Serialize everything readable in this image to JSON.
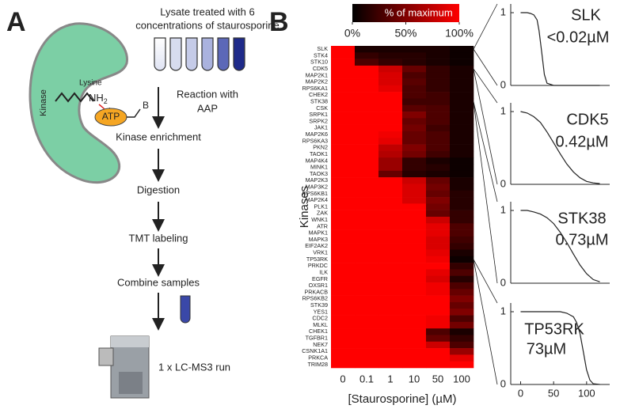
{
  "panel_a": {
    "label": "A",
    "title_lines": [
      "Lysate treated with 6",
      "concentrations of staurosporine"
    ],
    "kinase": "Kinase",
    "lysine": "Lysine",
    "nh": "NH",
    "nh_sub": "2",
    "atp": "ATP",
    "b": "B",
    "reaction_lines": [
      "Reaction with",
      "AAP"
    ],
    "steps": [
      "Kinase enrichment",
      "Digestion",
      "TMT labeling",
      "Combine samples",
      "1 x LC-MS3 run"
    ]
  },
  "panel_b_label": "B",
  "chart_data": [
    {
      "type": "heatmap",
      "colorbar": {
        "title": "% of maximum",
        "lim": [
          0,
          100
        ],
        "ticks": [
          {
            "value": 0,
            "label": "0%"
          },
          {
            "value": 50,
            "label": "50%"
          },
          {
            "value": 100,
            "label": "100%"
          }
        ],
        "colors": [
          "#000000",
          "#ff0000"
        ]
      },
      "x_label": "[Staurosporine] (µM)",
      "y_label": "Kinases",
      "categories": [
        "0",
        "0.1",
        "1",
        "10",
        "50",
        "100"
      ],
      "rows": [
        "SLK",
        "STK4",
        "STK10",
        "CDK5",
        "MAP2K1",
        "MAP2K2",
        "RPS6KA1",
        "CHEK2",
        "STK38",
        "CSK",
        "SRPK1",
        "SRPK2",
        "JAK1",
        "MAP2K6",
        "RPS6KA3",
        "PKN2",
        "TAOK1",
        "MAP4K4",
        "MINK1",
        "TAOK3",
        "MAP2K3",
        "MAP3K2",
        "RPS6KB1",
        "MAP2K4",
        "PLK1",
        "ZAK",
        "WNK1",
        "ATR",
        "MAPK1",
        "MAPK3",
        "EIF2AK2",
        "VRK1",
        "TP53RK",
        "PRKDC",
        "ILK",
        "EGFR",
        "OXSR1",
        "PRKACB",
        "RPS6KB2",
        "STK39",
        "YES1",
        "CDC2",
        "MLKL",
        "CHEK1",
        "TGFBR1",
        "NEK7",
        "CSNK1A1",
        "PRKCA",
        "TRIM28"
      ],
      "values": [
        [
          100,
          10,
          10,
          10,
          10,
          5
        ],
        [
          100,
          20,
          15,
          15,
          10,
          5
        ],
        [
          100,
          30,
          20,
          15,
          10,
          5
        ],
        [
          100,
          100,
          80,
          40,
          20,
          10
        ],
        [
          100,
          100,
          85,
          30,
          20,
          10
        ],
        [
          100,
          100,
          85,
          35,
          20,
          10
        ],
        [
          100,
          100,
          90,
          30,
          20,
          10
        ],
        [
          100,
          100,
          100,
          30,
          25,
          10
        ],
        [
          100,
          100,
          100,
          25,
          25,
          10
        ],
        [
          100,
          100,
          100,
          35,
          30,
          10
        ],
        [
          100,
          100,
          100,
          50,
          30,
          10
        ],
        [
          100,
          100,
          100,
          40,
          30,
          10
        ],
        [
          100,
          100,
          100,
          45,
          25,
          10
        ],
        [
          100,
          100,
          95,
          40,
          30,
          10
        ],
        [
          100,
          100,
          90,
          40,
          30,
          10
        ],
        [
          100,
          100,
          75,
          50,
          30,
          10
        ],
        [
          100,
          100,
          70,
          45,
          25,
          10
        ],
        [
          100,
          100,
          60,
          20,
          10,
          5
        ],
        [
          100,
          100,
          60,
          20,
          15,
          5
        ],
        [
          100,
          100,
          40,
          15,
          10,
          5
        ],
        [
          100,
          100,
          100,
          80,
          40,
          10
        ],
        [
          100,
          100,
          100,
          85,
          45,
          10
        ],
        [
          100,
          100,
          100,
          85,
          40,
          15
        ],
        [
          100,
          100,
          100,
          85,
          50,
          15
        ],
        [
          100,
          100,
          100,
          100,
          45,
          15
        ],
        [
          100,
          100,
          100,
          100,
          40,
          20
        ],
        [
          100,
          100,
          100,
          100,
          80,
          20
        ],
        [
          100,
          100,
          100,
          100,
          90,
          30
        ],
        [
          100,
          100,
          100,
          100,
          90,
          30
        ],
        [
          100,
          100,
          100,
          100,
          85,
          25
        ],
        [
          100,
          100,
          100,
          100,
          85,
          20
        ],
        [
          100,
          100,
          100,
          100,
          90,
          10
        ],
        [
          100,
          100,
          100,
          100,
          95,
          5
        ],
        [
          100,
          100,
          100,
          100,
          100,
          20
        ],
        [
          100,
          100,
          100,
          100,
          90,
          30
        ],
        [
          100,
          100,
          100,
          100,
          85,
          15
        ],
        [
          100,
          100,
          100,
          100,
          95,
          30
        ],
        [
          100,
          100,
          100,
          100,
          95,
          40
        ],
        [
          100,
          100,
          100,
          100,
          100,
          50
        ],
        [
          100,
          100,
          100,
          100,
          100,
          40
        ],
        [
          100,
          100,
          100,
          100,
          100,
          50
        ],
        [
          100,
          100,
          100,
          100,
          95,
          30
        ],
        [
          100,
          100,
          100,
          100,
          95,
          45
        ],
        [
          100,
          100,
          100,
          100,
          30,
          10
        ],
        [
          100,
          100,
          100,
          100,
          40,
          20
        ],
        [
          100,
          100,
          100,
          100,
          80,
          30
        ],
        [
          100,
          100,
          100,
          100,
          100,
          60
        ],
        [
          100,
          100,
          100,
          100,
          100,
          90
        ],
        [
          100,
          100,
          100,
          100,
          100,
          100
        ]
      ]
    },
    {
      "type": "line",
      "title": "SLK",
      "annotation": "<0.02µM",
      "color": "#222222",
      "xlim": [
        -15,
        135
      ],
      "ylim": [
        0,
        1.12
      ],
      "yticks": [
        0,
        1
      ],
      "x": [
        0,
        5,
        10,
        15,
        20,
        25,
        28,
        32,
        36,
        40,
        50,
        70,
        100,
        120
      ],
      "values": [
        1,
        1,
        1,
        0.99,
        0.97,
        0.9,
        0.75,
        0.45,
        0.15,
        0.03,
        0,
        0,
        0,
        0
      ]
    },
    {
      "type": "line",
      "title": "CDK5",
      "annotation": "0.42µM",
      "color": "#222222",
      "xlim": [
        -15,
        135
      ],
      "ylim": [
        0,
        1.12
      ],
      "yticks": [
        0,
        1
      ],
      "x": [
        0,
        10,
        20,
        30,
        40,
        50,
        60,
        70,
        80,
        90,
        100,
        110,
        120
      ],
      "values": [
        1,
        0.98,
        0.93,
        0.85,
        0.72,
        0.57,
        0.42,
        0.28,
        0.17,
        0.09,
        0.04,
        0.02,
        0.01
      ]
    },
    {
      "type": "line",
      "title": "STK38",
      "annotation": "0.73µM",
      "color": "#222222",
      "xlim": [
        -15,
        135
      ],
      "ylim": [
        0,
        1.12
      ],
      "yticks": [
        0,
        1
      ],
      "x": [
        0,
        10,
        20,
        30,
        40,
        50,
        60,
        70,
        80,
        90,
        100,
        110,
        120
      ],
      "values": [
        1,
        1,
        0.98,
        0.95,
        0.9,
        0.82,
        0.7,
        0.56,
        0.4,
        0.25,
        0.13,
        0.05,
        0.02
      ]
    },
    {
      "type": "line",
      "title": "TP53RK",
      "annotation": "73µM",
      "color": "#222222",
      "xlim": [
        -15,
        135
      ],
      "ylim": [
        0,
        1.12
      ],
      "yticks": [
        0,
        1
      ],
      "xticks": [
        0,
        50,
        100
      ],
      "x": [
        0,
        20,
        40,
        60,
        70,
        80,
        85,
        90,
        95,
        100,
        105,
        110,
        120
      ],
      "values": [
        1,
        1,
        1,
        1,
        0.98,
        0.93,
        0.85,
        0.7,
        0.45,
        0.2,
        0.06,
        0.01,
        0
      ]
    }
  ]
}
